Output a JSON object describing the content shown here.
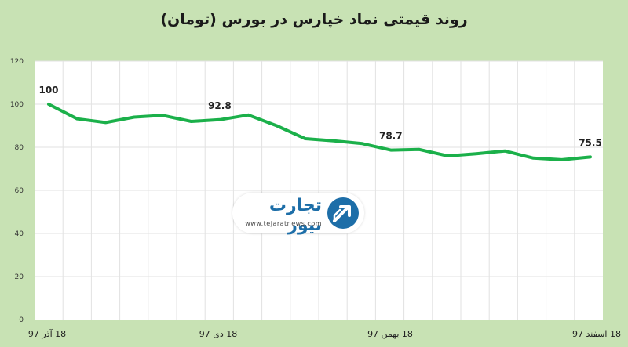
{
  "chart_data": {
    "type": "line",
    "title": "روند قیمتی نماد خپارس در بورس (تومان)",
    "ylim": [
      0,
      120
    ],
    "y_ticks": [
      "0",
      "20",
      "40",
      "60",
      "80",
      "100",
      "120"
    ],
    "x_tick_labels": [
      "18 آذر 97",
      "18 دی 97",
      "18 بهمن 97",
      "18 اسفند 97"
    ],
    "series": [
      {
        "values": [
          100,
          93.2,
          91.5,
          94.0,
          94.8,
          92.0,
          92.8,
          95.0,
          90.0,
          84.0,
          83.0,
          81.7,
          78.7,
          79.0,
          76.0,
          77.0,
          78.3,
          75.0,
          74.2,
          75.5
        ],
        "color": "#1bb04a"
      }
    ],
    "data_labels": [
      {
        "index": 0,
        "text": "100"
      },
      {
        "index": 6,
        "text": "92.8"
      },
      {
        "index": 12,
        "text": "78.7"
      },
      {
        "index": 19,
        "text": "75.5"
      }
    ],
    "grid": true
  },
  "watermark": {
    "brand": "تجارت نیوز",
    "url": "www.tejaratnews.com"
  },
  "colors": {
    "background": "#c8e2b4",
    "plot_background": "#ffffff",
    "line": "#1bb04a",
    "grid": "#e2e2e2",
    "brand": "#1d6ea8"
  }
}
